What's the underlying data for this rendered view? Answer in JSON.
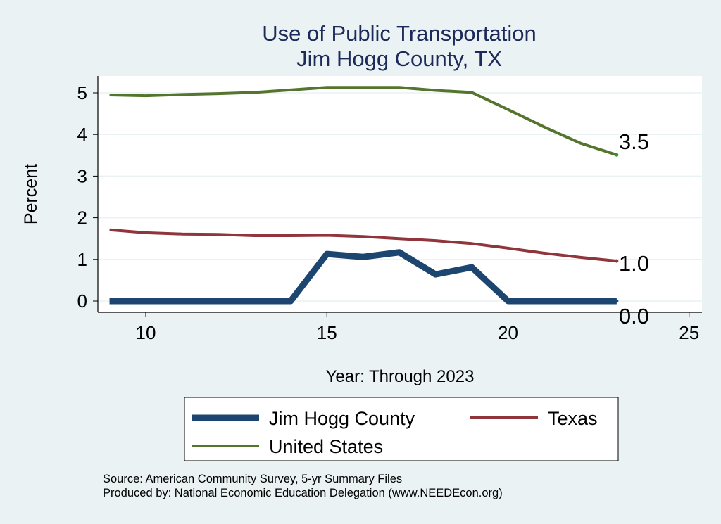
{
  "chart_data": {
    "type": "line",
    "title": "Use of Public Transportation",
    "subtitle": "Jim Hogg County, TX",
    "xlabel": "Year: Through 2023",
    "ylabel": "Percent",
    "xlim": [
      9,
      25
    ],
    "ylim": [
      0,
      5
    ],
    "xticks": [
      "10",
      "15",
      "20",
      "25"
    ],
    "yticks": [
      "0",
      "1",
      "2",
      "3",
      "4",
      "5"
    ],
    "x": [
      9,
      10,
      11,
      12,
      13,
      14,
      15,
      16,
      17,
      18,
      19,
      20,
      21,
      22,
      23
    ],
    "series": [
      {
        "name": "Jim Hogg County",
        "color": "#1c466f",
        "values": [
          0,
          0,
          0,
          0,
          0,
          0,
          1.13,
          1.06,
          1.17,
          0.64,
          0.81,
          0,
          0,
          0,
          0
        ],
        "end_label": "0.0"
      },
      {
        "name": "Texas",
        "color": "#90353b",
        "values": [
          1.71,
          1.64,
          1.61,
          1.6,
          1.57,
          1.57,
          1.58,
          1.55,
          1.5,
          1.45,
          1.38,
          1.27,
          1.15,
          1.05,
          0.96
        ],
        "end_label": "1.0"
      },
      {
        "name": "United States",
        "color": "#55752f",
        "values": [
          4.95,
          4.93,
          4.96,
          4.98,
          5.01,
          5.07,
          5.13,
          5.13,
          5.13,
          5.06,
          5.01,
          4.6,
          4.18,
          3.79,
          3.51
        ],
        "end_label": "3.5"
      }
    ],
    "grid": true,
    "legend_position": "bottom"
  },
  "notes": {
    "source": "Source: American Community Survey, 5-yr Summary Files",
    "produced": "Produced by: National Economic Education Delegation (www.NEEDEcon.org)"
  }
}
